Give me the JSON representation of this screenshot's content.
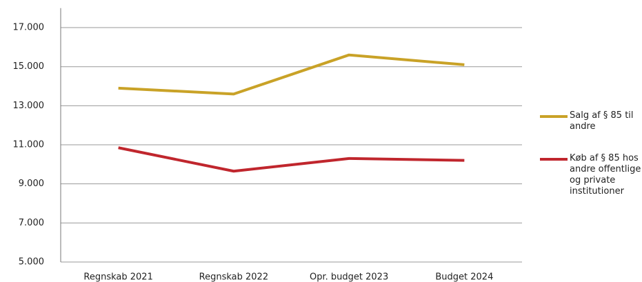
{
  "chart_data": {
    "type": "line",
    "categories": [
      "Regnskab 2021",
      "Regnskab 2022",
      "Opr. budget 2023",
      "Budget 2024"
    ],
    "series": [
      {
        "name": "Salg af § 85 til andre",
        "color": "#c9a227",
        "values": [
          13900,
          13600,
          15600,
          15100
        ]
      },
      {
        "name": "Køb af § 85 hos andre offentlige og private institutioner",
        "color": "#c0262d",
        "values": [
          10850,
          9650,
          10300,
          10200
        ]
      }
    ],
    "ylim": [
      5000,
      18000
    ],
    "yticks": [
      {
        "value": 5000,
        "label": "5.000"
      },
      {
        "value": 7000,
        "label": "7.000"
      },
      {
        "value": 9000,
        "label": "9.000"
      },
      {
        "value": 11000,
        "label": "11.000"
      },
      {
        "value": 13000,
        "label": "13.000"
      },
      {
        "value": 15000,
        "label": "15.000"
      },
      {
        "value": 17000,
        "label": "17.000"
      }
    ],
    "grid": true
  }
}
